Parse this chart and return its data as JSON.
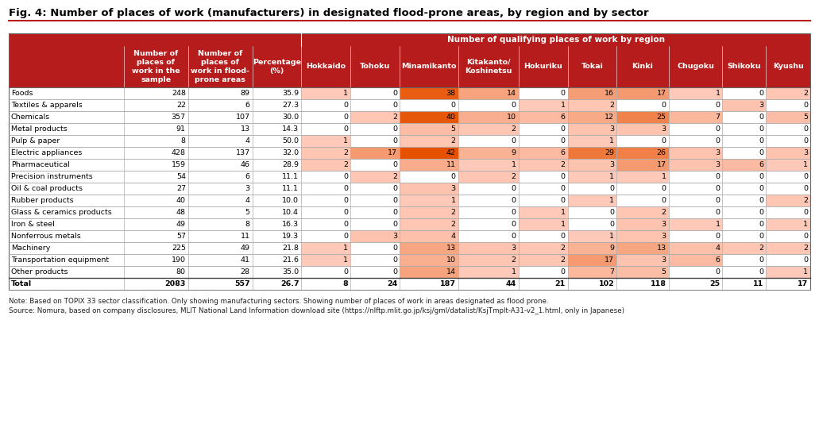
{
  "title": "Fig. 4: Number of places of work (manufacturers) in designated flood-prone areas, by region and by sector",
  "header_bg": "#B71C1C",
  "note_text": "Note: Based on TOPIX 33 sector classification. Only showing manufacturing sectors. Showing number of places of work in areas designated as flood prone.",
  "source_text": "Source: Nomura, based on company disclosures, MLIT National Land Information download site (https://nlftp.mlit.go.jp/ksj/gml/datalist/KsjTmplt-A31-v2_1.html, only in Japanese)",
  "spanning_header": "Number of qualifying places of work by region",
  "rows": [
    {
      "sector": "Foods",
      "n_sample": 248,
      "n_flood": 89,
      "pct": "35.9",
      "hokkaido": 1,
      "tohoku": 0,
      "minamikanto": 38,
      "kitakanto": 14,
      "hokuriku": 0,
      "tokai": 16,
      "kinki": 17,
      "chugoku": 1,
      "shikoku": 0,
      "kyushu": 2,
      "bold": false
    },
    {
      "sector": "Textiles & apparels",
      "n_sample": 22,
      "n_flood": 6,
      "pct": "27.3",
      "hokkaido": 0,
      "tohoku": 0,
      "minamikanto": 0,
      "kitakanto": 0,
      "hokuriku": 1,
      "tokai": 2,
      "kinki": 0,
      "chugoku": 0,
      "shikoku": 3,
      "kyushu": 0,
      "bold": false
    },
    {
      "sector": "Chemicals",
      "n_sample": 357,
      "n_flood": 107,
      "pct": "30.0",
      "hokkaido": 0,
      "tohoku": 2,
      "minamikanto": 40,
      "kitakanto": 10,
      "hokuriku": 6,
      "tokai": 12,
      "kinki": 25,
      "chugoku": 7,
      "shikoku": 0,
      "kyushu": 5,
      "bold": false
    },
    {
      "sector": "Metal products",
      "n_sample": 91,
      "n_flood": 13,
      "pct": "14.3",
      "hokkaido": 0,
      "tohoku": 0,
      "minamikanto": 5,
      "kitakanto": 2,
      "hokuriku": 0,
      "tokai": 3,
      "kinki": 3,
      "chugoku": 0,
      "shikoku": 0,
      "kyushu": 0,
      "bold": false
    },
    {
      "sector": "Pulp & paper",
      "n_sample": 8,
      "n_flood": 4,
      "pct": "50.0",
      "hokkaido": 1,
      "tohoku": 0,
      "minamikanto": 2,
      "kitakanto": 0,
      "hokuriku": 0,
      "tokai": 1,
      "kinki": 0,
      "chugoku": 0,
      "shikoku": 0,
      "kyushu": 0,
      "bold": false
    },
    {
      "sector": "Electric appliances",
      "n_sample": 428,
      "n_flood": 137,
      "pct": "32.0",
      "hokkaido": 2,
      "tohoku": 17,
      "minamikanto": 42,
      "kitakanto": 9,
      "hokuriku": 6,
      "tokai": 29,
      "kinki": 26,
      "chugoku": 3,
      "shikoku": 0,
      "kyushu": 3,
      "bold": false
    },
    {
      "sector": "Pharmaceutical",
      "n_sample": 159,
      "n_flood": 46,
      "pct": "28.9",
      "hokkaido": 2,
      "tohoku": 0,
      "minamikanto": 11,
      "kitakanto": 1,
      "hokuriku": 2,
      "tokai": 3,
      "kinki": 17,
      "chugoku": 3,
      "shikoku": 6,
      "kyushu": 1,
      "bold": false
    },
    {
      "sector": "Precision instruments",
      "n_sample": 54,
      "n_flood": 6,
      "pct": "11.1",
      "hokkaido": 0,
      "tohoku": 2,
      "minamikanto": 0,
      "kitakanto": 2,
      "hokuriku": 0,
      "tokai": 1,
      "kinki": 1,
      "chugoku": 0,
      "shikoku": 0,
      "kyushu": 0,
      "bold": false
    },
    {
      "sector": "Oil & coal products",
      "n_sample": 27,
      "n_flood": 3,
      "pct": "11.1",
      "hokkaido": 0,
      "tohoku": 0,
      "minamikanto": 3,
      "kitakanto": 0,
      "hokuriku": 0,
      "tokai": 0,
      "kinki": 0,
      "chugoku": 0,
      "shikoku": 0,
      "kyushu": 0,
      "bold": false
    },
    {
      "sector": "Rubber products",
      "n_sample": 40,
      "n_flood": 4,
      "pct": "10.0",
      "hokkaido": 0,
      "tohoku": 0,
      "minamikanto": 1,
      "kitakanto": 0,
      "hokuriku": 0,
      "tokai": 1,
      "kinki": 0,
      "chugoku": 0,
      "shikoku": 0,
      "kyushu": 2,
      "bold": false
    },
    {
      "sector": "Glass & ceramics products",
      "n_sample": 48,
      "n_flood": 5,
      "pct": "10.4",
      "hokkaido": 0,
      "tohoku": 0,
      "minamikanto": 2,
      "kitakanto": 0,
      "hokuriku": 1,
      "tokai": 0,
      "kinki": 2,
      "chugoku": 0,
      "shikoku": 0,
      "kyushu": 0,
      "bold": false
    },
    {
      "sector": "Iron & steel",
      "n_sample": 49,
      "n_flood": 8,
      "pct": "16.3",
      "hokkaido": 0,
      "tohoku": 0,
      "minamikanto": 2,
      "kitakanto": 0,
      "hokuriku": 1,
      "tokai": 0,
      "kinki": 3,
      "chugoku": 1,
      "shikoku": 0,
      "kyushu": 1,
      "bold": false
    },
    {
      "sector": "Nonferrous metals",
      "n_sample": 57,
      "n_flood": 11,
      "pct": "19.3",
      "hokkaido": 0,
      "tohoku": 3,
      "minamikanto": 4,
      "kitakanto": 0,
      "hokuriku": 0,
      "tokai": 1,
      "kinki": 3,
      "chugoku": 0,
      "shikoku": 0,
      "kyushu": 0,
      "bold": false
    },
    {
      "sector": "Machinery",
      "n_sample": 225,
      "n_flood": 49,
      "pct": "21.8",
      "hokkaido": 1,
      "tohoku": 0,
      "minamikanto": 13,
      "kitakanto": 3,
      "hokuriku": 2,
      "tokai": 9,
      "kinki": 13,
      "chugoku": 4,
      "shikoku": 2,
      "kyushu": 2,
      "bold": false
    },
    {
      "sector": "Transportation equipment",
      "n_sample": 190,
      "n_flood": 41,
      "pct": "21.6",
      "hokkaido": 1,
      "tohoku": 0,
      "minamikanto": 10,
      "kitakanto": 2,
      "hokuriku": 2,
      "tokai": 17,
      "kinki": 3,
      "chugoku": 6,
      "shikoku": 0,
      "kyushu": 0,
      "bold": false
    },
    {
      "sector": "Other products",
      "n_sample": 80,
      "n_flood": 28,
      "pct": "35.0",
      "hokkaido": 0,
      "tohoku": 0,
      "minamikanto": 14,
      "kitakanto": 1,
      "hokuriku": 0,
      "tokai": 7,
      "kinki": 5,
      "chugoku": 0,
      "shikoku": 0,
      "kyushu": 1,
      "bold": false
    },
    {
      "sector": "Total",
      "n_sample": 2083,
      "n_flood": 557,
      "pct": "26.7",
      "hokkaido": 8,
      "tohoku": 24,
      "minamikanto": 187,
      "kitakanto": 44,
      "hokuriku": 21,
      "tokai": 102,
      "kinki": 118,
      "chugoku": 25,
      "shikoku": 11,
      "kyushu": 17,
      "bold": true
    }
  ],
  "color_scale_max": 42,
  "color_scale_min": 0,
  "color_high": "#E65100",
  "color_low": "#FFCCBC"
}
